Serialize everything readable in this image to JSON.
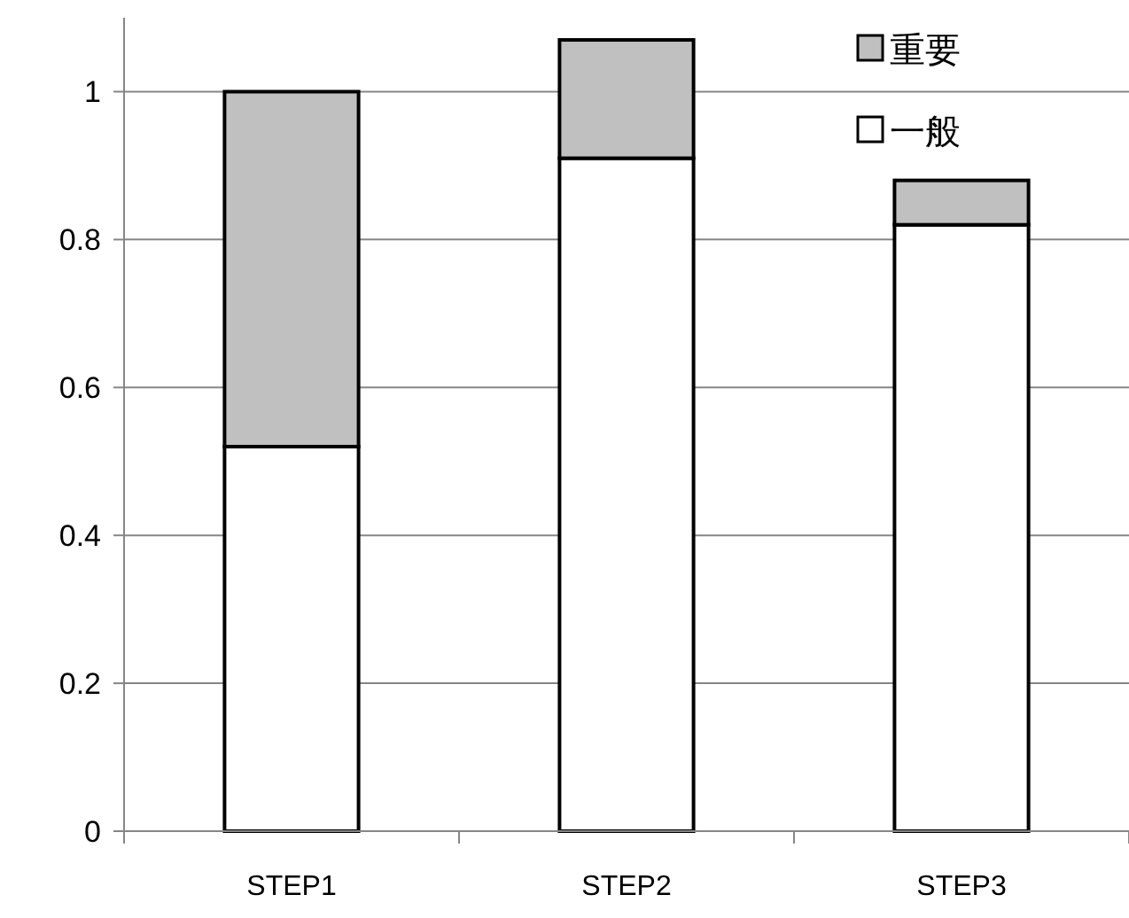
{
  "chart_data": {
    "type": "bar",
    "stacked": true,
    "categories": [
      "STEP1",
      "STEP2",
      "STEP3"
    ],
    "series": [
      {
        "name": "一般",
        "color": "#ffffff",
        "values": [
          0.52,
          0.91,
          0.82
        ]
      },
      {
        "name": "重要",
        "color": "#c0c0c0",
        "values": [
          0.48,
          0.16,
          0.06
        ]
      }
    ],
    "ylim": [
      0,
      1.1
    ],
    "yticks": [
      0,
      {
        "value": 0.2,
        "label": "0.2"
      },
      {
        "value": 0.4,
        "label": "0.4"
      },
      {
        "value": 0.6,
        "label": "0.6"
      },
      {
        "value": 0.8,
        "label": "0.8"
      },
      1
    ],
    "grid": "y",
    "legend": "top right"
  }
}
